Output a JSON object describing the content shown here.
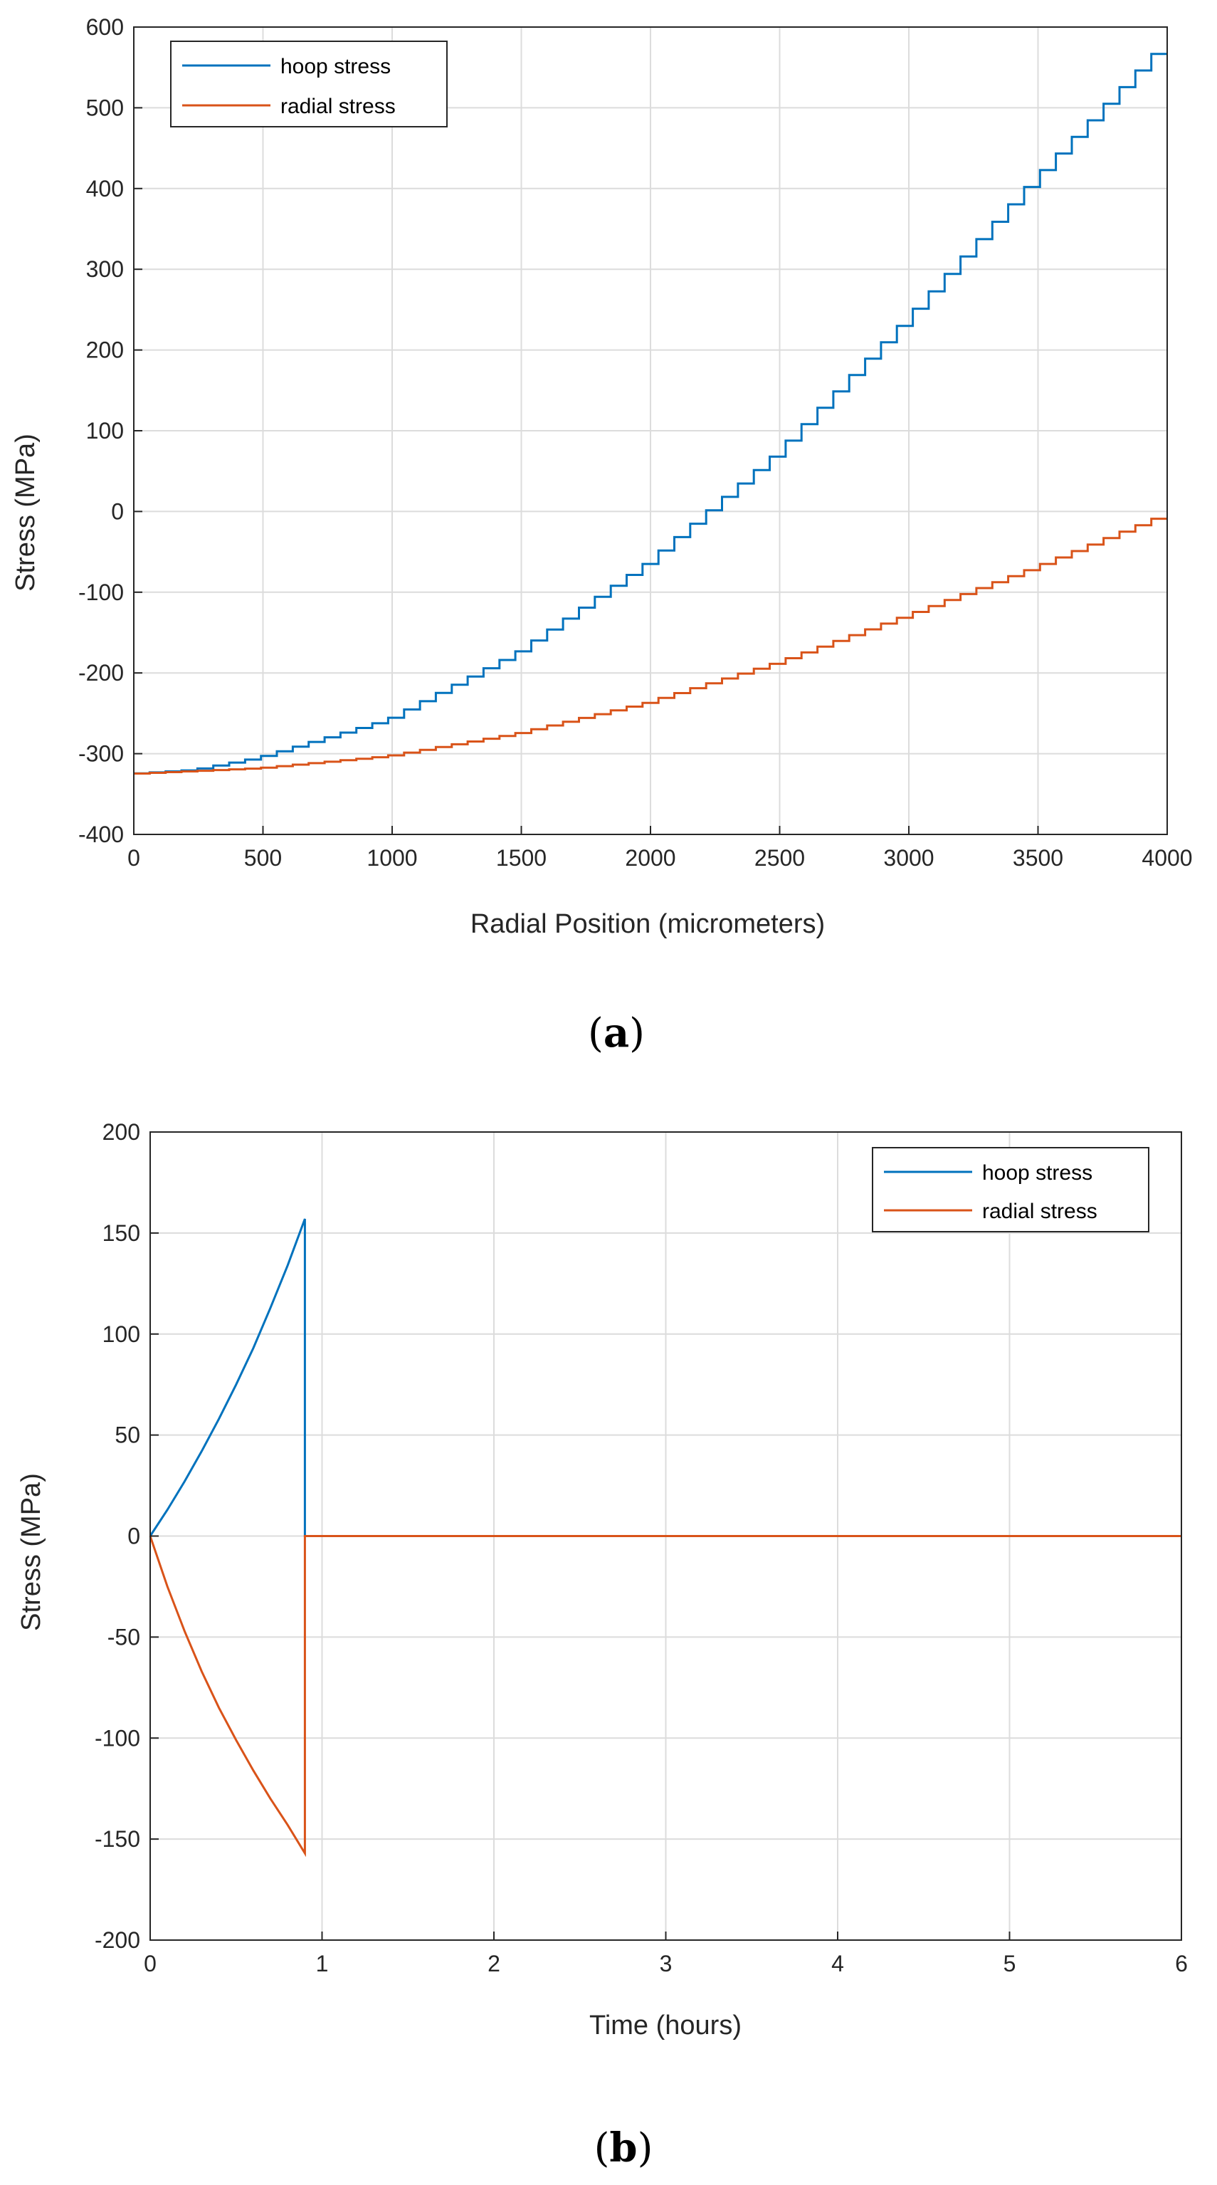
{
  "colors": {
    "hoop": "#0072BD",
    "radial": "#D95319",
    "grid": "#DCDCDC",
    "axis": "#262626"
  },
  "chart_data": [
    {
      "type": "line",
      "panel": "a",
      "caption_paren_open": "(",
      "caption_letter": "a",
      "caption_paren_close": ")",
      "xlabel": "Radial Position (micrometers)",
      "ylabel": "Stress (MPa)",
      "xlim": [
        0,
        4000
      ],
      "ylim": [
        -400,
        600
      ],
      "xticks": [
        0,
        500,
        1000,
        1500,
        2000,
        2500,
        3000,
        3500,
        4000
      ],
      "yticks": [
        -400,
        -300,
        -200,
        -100,
        0,
        100,
        200,
        300,
        400,
        500,
        600
      ],
      "grid": true,
      "legend_position": "top-left",
      "series": [
        {
          "name": "hoop stress",
          "color_key": "hoop",
          "step_count": 65,
          "x": [
            0,
            250,
            500,
            1000,
            1500,
            2000,
            2500,
            3000,
            3500,
            4000
          ],
          "y": [
            -325,
            -320,
            -305,
            -258,
            -175,
            -65,
            70,
            235,
            410,
            577
          ]
        },
        {
          "name": "radial stress",
          "color_key": "radial",
          "step_count": 65,
          "x": [
            0,
            500,
            1000,
            1500,
            2000,
            2500,
            3000,
            3500,
            4000
          ],
          "y": [
            -325,
            -318,
            -303,
            -275,
            -237,
            -188,
            -130,
            -70,
            -5
          ]
        }
      ]
    },
    {
      "type": "line",
      "panel": "b",
      "caption_paren_open": "(",
      "caption_letter": "b",
      "caption_paren_close": ")",
      "xlabel": "Time (hours)",
      "ylabel": "Stress (MPa)",
      "xlim": [
        0,
        6
      ],
      "ylim": [
        -200,
        200
      ],
      "xticks": [
        0,
        1,
        2,
        3,
        4,
        5,
        6
      ],
      "yticks": [
        -200,
        -150,
        -100,
        -50,
        0,
        50,
        100,
        150,
        200
      ],
      "grid": true,
      "legend_position": "top-right",
      "series": [
        {
          "name": "hoop stress",
          "color_key": "hoop",
          "x": [
            0,
            0.1,
            0.2,
            0.3,
            0.4,
            0.5,
            0.6,
            0.7,
            0.8,
            0.9,
            0.9,
            6
          ],
          "y": [
            0,
            13,
            27,
            42,
            58,
            75,
            93,
            113,
            134,
            157,
            0,
            0
          ]
        },
        {
          "name": "radial stress",
          "color_key": "radial",
          "x": [
            0,
            0.1,
            0.2,
            0.3,
            0.4,
            0.5,
            0.6,
            0.7,
            0.8,
            0.9,
            0.9,
            6
          ],
          "y": [
            0,
            -25,
            -47,
            -67,
            -85,
            -101,
            -116,
            -130,
            -143,
            -157,
            0,
            0
          ]
        }
      ]
    }
  ]
}
